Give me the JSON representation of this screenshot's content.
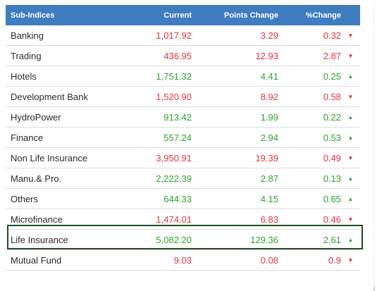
{
  "headers": {
    "name": "Sub-Indices",
    "current": "Current",
    "points": "Points Change",
    "pct": "%Change"
  },
  "rows": [
    {
      "name": "Banking",
      "current": "1,017.92",
      "points": "3.29",
      "pct": "0.32",
      "dir": "down"
    },
    {
      "name": "Trading",
      "current": "436.95",
      "points": "12.93",
      "pct": "2.87",
      "dir": "down"
    },
    {
      "name": "Hotels",
      "current": "1,751.32",
      "points": "4.41",
      "pct": "0.25",
      "dir": "up"
    },
    {
      "name": "Development Bank",
      "current": "1,520.90",
      "points": "8.92",
      "pct": "0.58",
      "dir": "down"
    },
    {
      "name": "HydroPower",
      "current": "913.42",
      "points": "1.99",
      "pct": "0.22",
      "dir": "up"
    },
    {
      "name": "Finance",
      "current": "557.24",
      "points": "2.94",
      "pct": "0.53",
      "dir": "up"
    },
    {
      "name": "Non Life Insurance",
      "current": "3,950.91",
      "points": "19.39",
      "pct": "0.49",
      "dir": "down"
    },
    {
      "name": "Manu.& Pro.",
      "current": "2,222.39",
      "points": "2.87",
      "pct": "0.13",
      "dir": "up"
    },
    {
      "name": "Others",
      "current": "644.33",
      "points": "4.15",
      "pct": "0.65",
      "dir": "up"
    },
    {
      "name": "Microfinance",
      "current": "1,474.01",
      "points": "6.83",
      "pct": "0.46",
      "dir": "down"
    },
    {
      "name": "Life Insurance",
      "current": "5,082.20",
      "points": "129.36",
      "pct": "2.61",
      "dir": "up"
    },
    {
      "name": "Mutual Fund",
      "current": "9.03",
      "points": "0.08",
      "pct": "0.9",
      "dir": "down"
    }
  ],
  "colors": {
    "header_bg": "#3f7cc0",
    "up": "#2ba32b",
    "down": "#e5343f",
    "highlight_border": "#1f4d25"
  },
  "icons": {
    "up": "caret-up-icon",
    "down": "caret-down-icon"
  }
}
